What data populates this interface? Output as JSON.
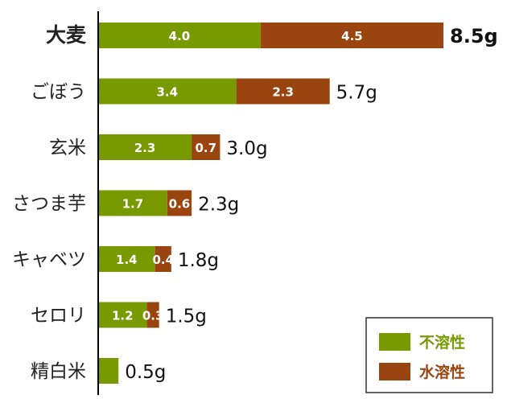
{
  "chart_data": {
    "type": "bar",
    "orientation": "horizontal",
    "stacked": true,
    "categories": [
      "大麦",
      "ごぼう",
      "玄米",
      "さつま芋",
      "キャベツ",
      "セロリ",
      "精白米"
    ],
    "series": [
      {
        "name": "不溶性",
        "color": "#789a00",
        "values": [
          4.0,
          3.4,
          2.3,
          1.7,
          1.4,
          1.2,
          0.5
        ]
      },
      {
        "name": "水溶性",
        "color": "#9a4510",
        "values": [
          4.5,
          2.3,
          0.7,
          0.6,
          0.4,
          0.3,
          0
        ]
      }
    ],
    "segment_labels": [
      [
        "4.0",
        "4.5"
      ],
      [
        "3.4",
        "2.3"
      ],
      [
        "2.3",
        "0.7"
      ],
      [
        "1.7",
        "0.6"
      ],
      [
        "1.4",
        "0.4"
      ],
      [
        "1.2",
        "0.3"
      ],
      [
        "",
        ""
      ]
    ],
    "totals": [
      "8.5g",
      "5.7g",
      "3.0g",
      "2.3g",
      "1.8g",
      "1.5g",
      "0.5g"
    ],
    "highlight_category": "大麦",
    "xlim": [
      0,
      8.5
    ],
    "legend_position": "bottom-right",
    "grid": false
  }
}
